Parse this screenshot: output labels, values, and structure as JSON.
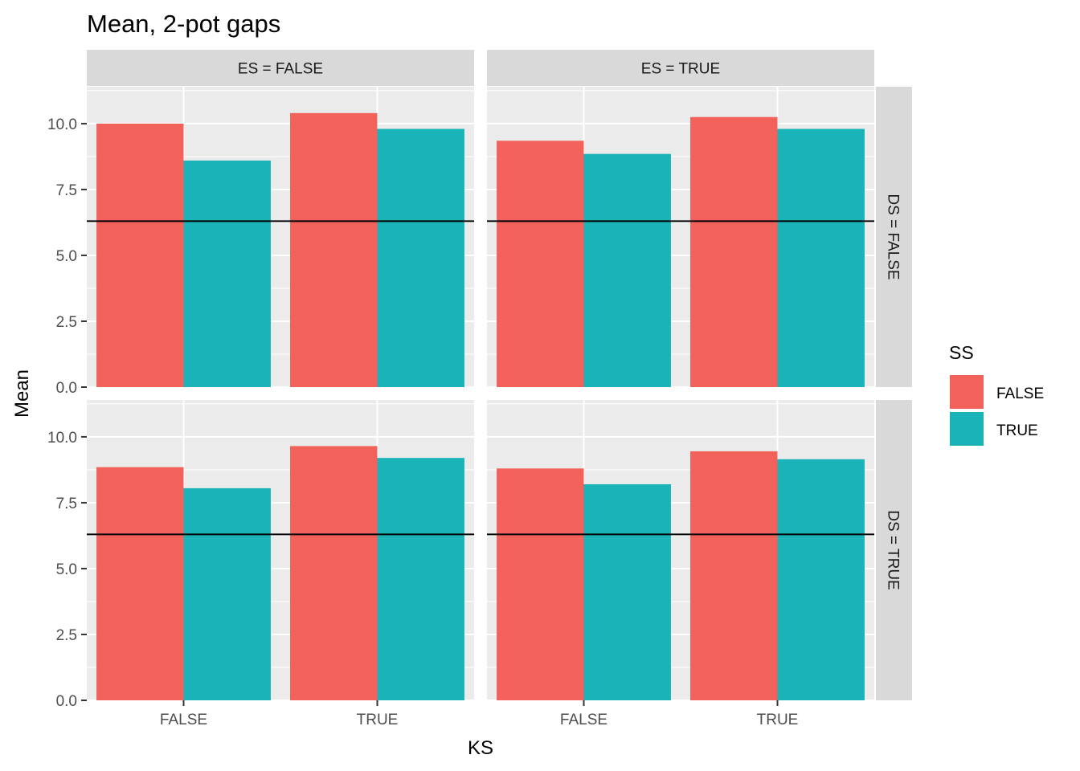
{
  "chart_data": {
    "type": "bar",
    "title": "Mean, 2-pot gaps",
    "xlabel": "KS",
    "ylabel": "Mean",
    "categories": [
      "FALSE",
      "TRUE"
    ],
    "ylim": [
      0,
      11.4
    ],
    "yticks": [
      0,
      2.5,
      5,
      7.5,
      10
    ],
    "ytick_labels": [
      "0.0",
      "2.5",
      "5.0",
      "7.5",
      "10.0"
    ],
    "reference_line": 6.3,
    "grid": true,
    "legend": {
      "title": "SS",
      "position": "right",
      "entries": [
        {
          "label": "FALSE",
          "color": "#F2615A"
        },
        {
          "label": "TRUE",
          "color": "#19B3B8"
        }
      ]
    },
    "facet_columns": [
      "ES = FALSE",
      "ES = TRUE"
    ],
    "facet_rows": [
      "DS = FALSE",
      "DS = TRUE"
    ],
    "panels": [
      {
        "col": "ES = FALSE",
        "row": "DS = FALSE",
        "series": [
          {
            "name": "FALSE",
            "values": [
              10.0,
              10.4
            ]
          },
          {
            "name": "TRUE",
            "values": [
              8.6,
              9.8
            ]
          }
        ]
      },
      {
        "col": "ES = TRUE",
        "row": "DS = FALSE",
        "series": [
          {
            "name": "FALSE",
            "values": [
              9.35,
              10.25
            ]
          },
          {
            "name": "TRUE",
            "values": [
              8.85,
              9.8
            ]
          }
        ]
      },
      {
        "col": "ES = FALSE",
        "row": "DS = TRUE",
        "series": [
          {
            "name": "FALSE",
            "values": [
              8.85,
              9.65
            ]
          },
          {
            "name": "TRUE",
            "values": [
              8.05,
              9.2
            ]
          }
        ]
      },
      {
        "col": "ES = TRUE",
        "row": "DS = TRUE",
        "series": [
          {
            "name": "FALSE",
            "values": [
              8.8,
              9.45
            ]
          },
          {
            "name": "TRUE",
            "values": [
              8.2,
              9.15
            ]
          }
        ]
      }
    ]
  }
}
